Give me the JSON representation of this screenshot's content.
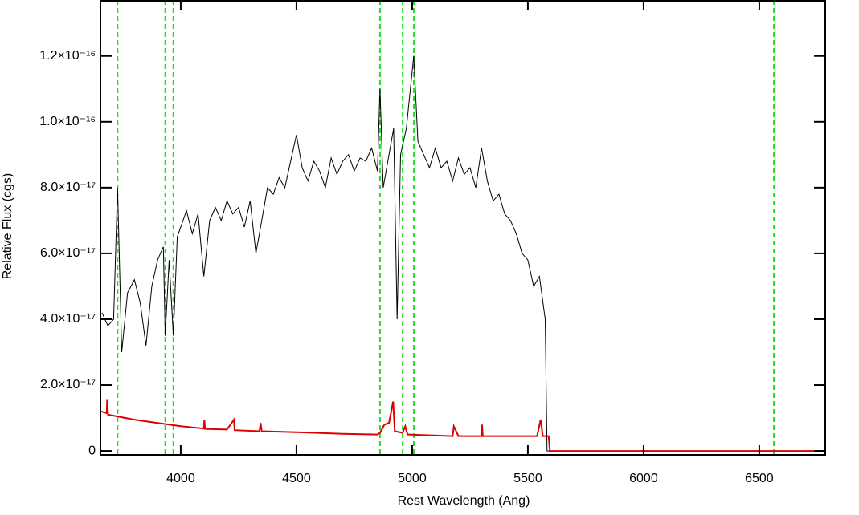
{
  "chart_data": {
    "type": "line",
    "x_label": "Rest Wavelength (Ang)",
    "y_label": "Relative Flux (cgs)",
    "xlim": [
      3653,
      6785
    ],
    "ylim": [
      -1.2e-18,
      1.37e-16
    ],
    "xticks": [
      4000,
      4500,
      5000,
      5500,
      6000,
      6500
    ],
    "yticks": [
      0,
      {
        "value": 2e-17,
        "label": "2.0×10⁻¹⁷"
      },
      {
        "value": 4e-17,
        "label": "4.0×10⁻¹⁷"
      },
      {
        "value": 6e-17,
        "label": "6.0×10⁻¹⁷"
      },
      {
        "value": 8e-17,
        "label": "8.0×10⁻¹⁷"
      },
      {
        "value": 1e-16,
        "label": "1.0×10⁻¹⁶"
      },
      {
        "value": 1.2e-16,
        "label": "1.2×10⁻¹⁶"
      }
    ],
    "vlines": [
      3727,
      3933,
      3968,
      4861,
      4959,
      5007,
      6563
    ],
    "vline_color": "#22dd22",
    "series": [
      {
        "color": "#000000",
        "x": [
          3660,
          3685,
          3710,
          3727,
          3745,
          3770,
          3800,
          3825,
          3850,
          3875,
          3900,
          3925,
          3933,
          3950,
          3968,
          3985,
          4000,
          4025,
          4050,
          4075,
          4100,
          4125,
          4150,
          4175,
          4200,
          4225,
          4250,
          4275,
          4300,
          4325,
          4350,
          4375,
          4400,
          4425,
          4450,
          4475,
          4500,
          4525,
          4550,
          4575,
          4600,
          4625,
          4650,
          4675,
          4700,
          4725,
          4750,
          4775,
          4800,
          4825,
          4850,
          4861,
          4875,
          4900,
          4920,
          4935,
          4950,
          4975,
          5007,
          5025,
          5050,
          5075,
          5100,
          5125,
          5150,
          5175,
          5200,
          5225,
          5250,
          5275,
          5300,
          5325,
          5350,
          5375,
          5400,
          5425,
          5450,
          5475,
          5500,
          5525,
          5550,
          5575,
          5583,
          6785
        ],
        "values": [
          4.2e-17,
          3.8e-17,
          4e-17,
          8e-17,
          3e-17,
          4.8e-17,
          5.2e-17,
          4.5e-17,
          3.2e-17,
          5e-17,
          5.8e-17,
          6.2e-17,
          3.5e-17,
          5.8e-17,
          3.5e-17,
          6.5e-17,
          6.8e-17,
          7.3e-17,
          6.6e-17,
          7.2e-17,
          5.3e-17,
          7e-17,
          7.4e-17,
          7e-17,
          7.6e-17,
          7.2e-17,
          7.4e-17,
          6.8e-17,
          7.6e-17,
          6e-17,
          7e-17,
          8e-17,
          7.8e-17,
          8.3e-17,
          8e-17,
          8.8e-17,
          9.6e-17,
          8.6e-17,
          8.2e-17,
          8.8e-17,
          8.5e-17,
          8e-17,
          8.9e-17,
          8.4e-17,
          8.8e-17,
          9e-17,
          8.5e-17,
          8.9e-17,
          8.8e-17,
          9.2e-17,
          8.5e-17,
          1.1e-16,
          8e-17,
          9e-17,
          9.8e-17,
          4e-17,
          9e-17,
          9.8e-17,
          1.2e-16,
          9.4e-17,
          9e-17,
          8.6e-17,
          9.2e-17,
          8.6e-17,
          8.8e-17,
          8.2e-17,
          8.9e-17,
          8.4e-17,
          8.6e-17,
          8e-17,
          9.2e-17,
          8.2e-17,
          7.6e-17,
          7.8e-17,
          7.2e-17,
          7e-17,
          6.6e-17,
          6e-17,
          5.8e-17,
          5e-17,
          5.3e-17,
          4e-17,
          0,
          0
        ]
      },
      {
        "color": "#dd0000",
        "x": [
          3655,
          3680,
          3682,
          3686,
          3800,
          3900,
          4000,
          4100,
          4102,
          4105,
          4200,
          4230,
          4233,
          4340,
          4345,
          4350,
          4500,
          4700,
          4850,
          4861,
          4880,
          4900,
          4918,
          4925,
          4959,
          4970,
          4980,
          5175,
          5180,
          5200,
          5300,
          5302,
          5305,
          5500,
          5540,
          5555,
          5565,
          5590,
          5595,
          6785
        ],
        "values": [
          1.2e-17,
          1.15e-17,
          1.55e-17,
          1.1e-17,
          9.5e-18,
          8.5e-18,
          7.5e-18,
          6.8e-18,
          9.5e-18,
          6.7e-18,
          6.5e-18,
          9.5e-18,
          6.3e-18,
          6e-18,
          8.5e-18,
          6e-18,
          5.7e-18,
          5.2e-18,
          5e-18,
          5.5e-18,
          8e-18,
          8.5e-18,
          1.5e-17,
          6e-18,
          5.5e-18,
          7.5e-18,
          5e-18,
          4.5e-18,
          7.5e-18,
          4.5e-18,
          4.5e-18,
          8e-18,
          4.5e-18,
          4.5e-18,
          4.5e-18,
          9.5e-18,
          4.5e-18,
          4.5e-18,
          0,
          0
        ]
      }
    ]
  }
}
